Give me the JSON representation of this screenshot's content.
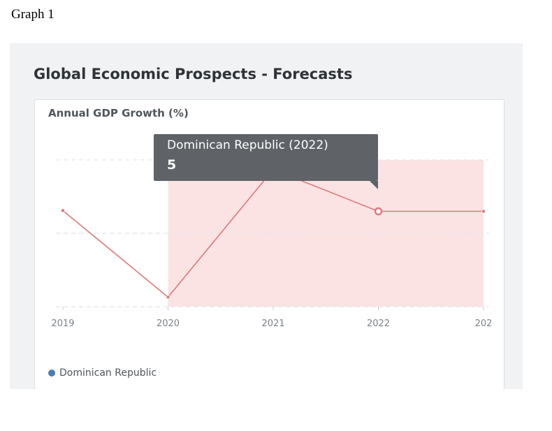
{
  "page_label": "Graph 1",
  "panel_title": "Global Economic Prospects - Forecasts",
  "colors": {
    "line": "#e07777",
    "forecast_band": "#fbe3e4",
    "legend_marker": "#4a7fb5",
    "tooltip_bg": "#5f6368",
    "grid": "#e3e5e8"
  },
  "chart_data": {
    "type": "line",
    "title": "Annual GDP Growth (%)",
    "xlabel": "",
    "ylabel": "",
    "categories": [
      "2019",
      "2020",
      "2021",
      "2022",
      "202"
    ],
    "series": [
      {
        "name": "Dominican Republic",
        "values": [
          5.1,
          -6.7,
          10.7,
          5.0,
          5.0
        ]
      }
    ],
    "ylim": [
      -8,
      12
    ],
    "grid": true,
    "forecast_shading": {
      "from": "2020",
      "to": "202"
    },
    "highlighted_point": {
      "category": "2022",
      "series": "Dominican Republic"
    },
    "tooltip": {
      "title": "Dominican Republic (2022)",
      "value": "5"
    },
    "legend": {
      "position": "bottom-left",
      "entries": [
        "Dominican Republic"
      ]
    }
  }
}
